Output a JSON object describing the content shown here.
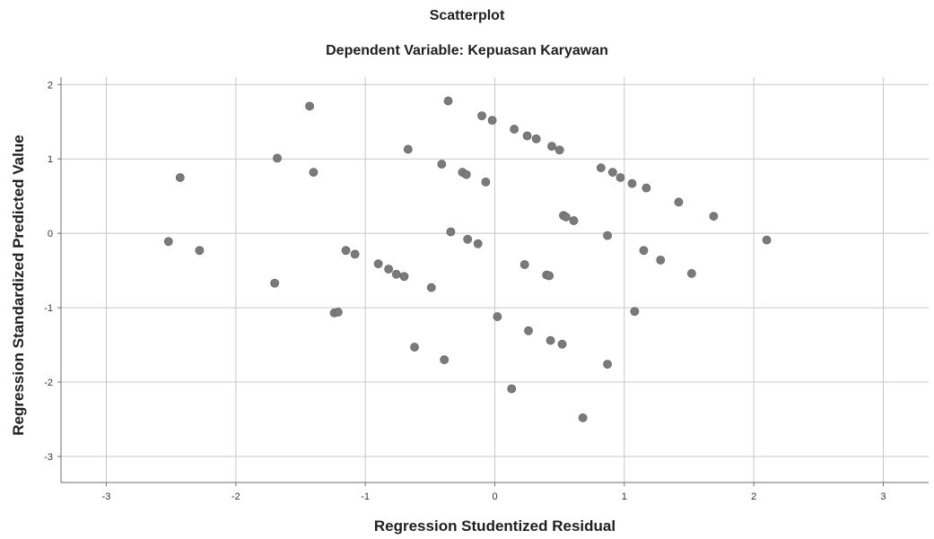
{
  "chart_data": {
    "type": "scatter",
    "title": "Scatterplot",
    "subtitle": "Dependent Variable: Kepuasan Karyawan",
    "xlabel": "Regression Studentized Residual",
    "ylabel": "Regression Standardized Predicted Value",
    "xlim": [
      -3.35,
      3.35
    ],
    "ylim": [
      -3.35,
      2.1
    ],
    "xticks": [
      -3,
      -2,
      -1,
      0,
      1,
      2,
      3
    ],
    "yticks": [
      -3,
      -2,
      -1,
      0,
      1,
      2
    ],
    "xtick_labels": [
      "-3",
      "-2",
      "-1",
      "0",
      "1",
      "2",
      "3"
    ],
    "ytick_labels": [
      "-3",
      "-2",
      "-1",
      "0",
      "1",
      "2"
    ],
    "grid": true,
    "marker_color": "#7a7a7a",
    "points": [
      [
        -2.52,
        -0.11
      ],
      [
        -2.43,
        0.75
      ],
      [
        -2.28,
        -0.23
      ],
      [
        -1.7,
        -0.67
      ],
      [
        -1.68,
        1.01
      ],
      [
        -1.43,
        1.71
      ],
      [
        -1.4,
        0.82
      ],
      [
        -1.24,
        -1.07
      ],
      [
        -1.21,
        -1.06
      ],
      [
        -1.15,
        -0.23
      ],
      [
        -1.08,
        -0.28
      ],
      [
        -0.9,
        -0.41
      ],
      [
        -0.82,
        -0.48
      ],
      [
        -0.76,
        -0.55
      ],
      [
        -0.7,
        -0.58
      ],
      [
        -0.67,
        1.13
      ],
      [
        -0.62,
        -1.53
      ],
      [
        -0.49,
        -0.73
      ],
      [
        -0.41,
        0.93
      ],
      [
        -0.39,
        -1.7
      ],
      [
        -0.36,
        1.78
      ],
      [
        -0.34,
        0.02
      ],
      [
        -0.25,
        0.82
      ],
      [
        -0.22,
        0.79
      ],
      [
        -0.21,
        -0.08
      ],
      [
        -0.13,
        -0.14
      ],
      [
        -0.1,
        1.58
      ],
      [
        -0.07,
        0.69
      ],
      [
        -0.02,
        1.52
      ],
      [
        0.02,
        -1.12
      ],
      [
        0.13,
        -2.09
      ],
      [
        0.15,
        1.4
      ],
      [
        0.23,
        -0.42
      ],
      [
        0.25,
        1.31
      ],
      [
        0.26,
        -1.31
      ],
      [
        0.32,
        1.27
      ],
      [
        0.4,
        -0.56
      ],
      [
        0.42,
        -0.57
      ],
      [
        0.43,
        -1.44
      ],
      [
        0.44,
        1.17
      ],
      [
        0.5,
        1.12
      ],
      [
        0.52,
        -1.49
      ],
      [
        0.53,
        0.24
      ],
      [
        0.55,
        0.22
      ],
      [
        0.61,
        0.17
      ],
      [
        0.68,
        -2.48
      ],
      [
        0.82,
        0.88
      ],
      [
        0.87,
        -0.03
      ],
      [
        0.87,
        -1.76
      ],
      [
        0.91,
        0.82
      ],
      [
        0.97,
        0.75
      ],
      [
        1.06,
        0.67
      ],
      [
        1.08,
        -1.05
      ],
      [
        1.15,
        -0.23
      ],
      [
        1.17,
        0.61
      ],
      [
        1.28,
        -0.36
      ],
      [
        1.42,
        0.42
      ],
      [
        1.52,
        -0.54
      ],
      [
        1.69,
        0.23
      ],
      [
        2.1,
        -0.09
      ]
    ]
  }
}
